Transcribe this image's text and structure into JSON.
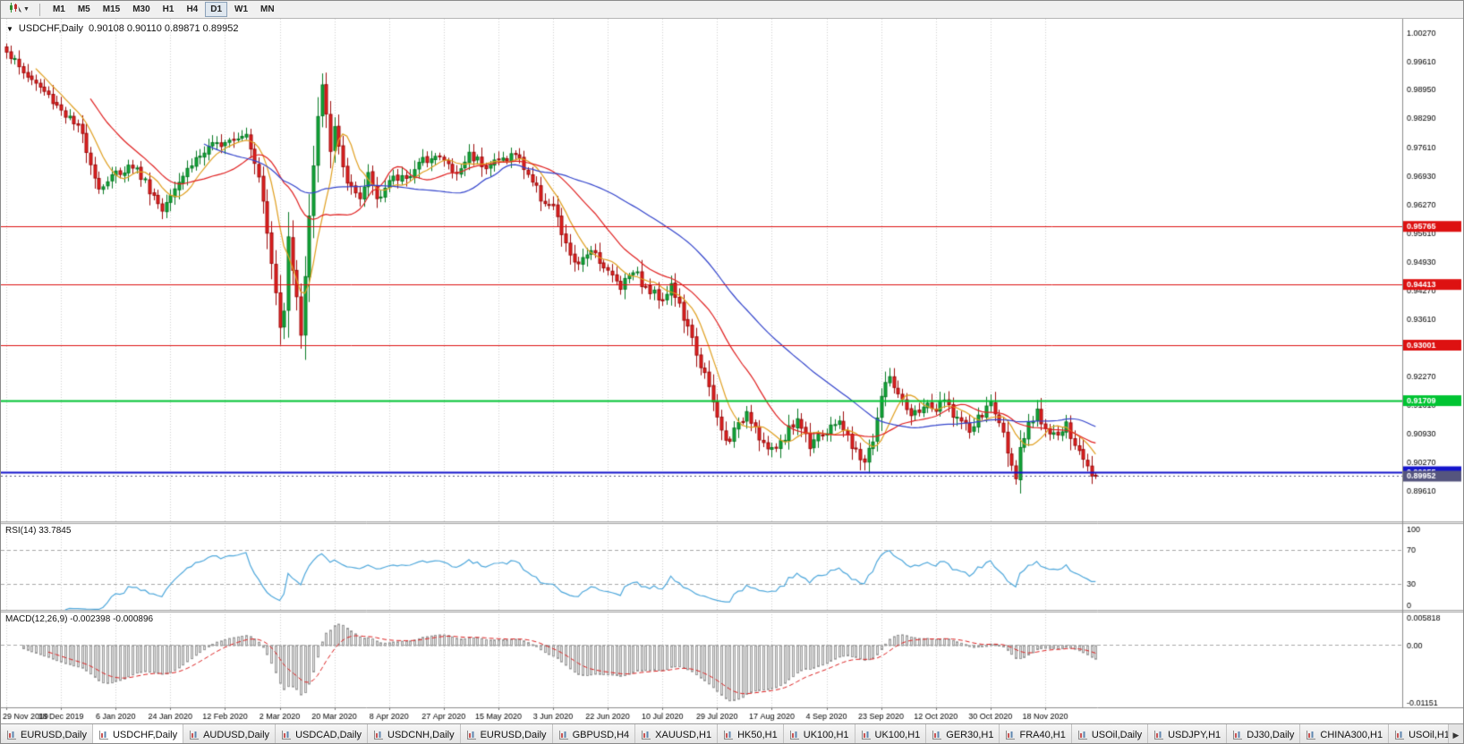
{
  "toolbar": {
    "tool_icon": "candlestick-cursor-tool-icon",
    "dropdown_icon": "chevron-down-icon",
    "timeframes": [
      "M1",
      "M5",
      "M15",
      "M30",
      "H1",
      "H4",
      "D1",
      "W1",
      "MN"
    ],
    "active_timeframe": "D1"
  },
  "main_chart": {
    "collapse_icon": "triangle-down-icon",
    "symbol_label": "USDCHF,Daily",
    "ohlc": "0.90108 0.90110 0.89871 0.89952",
    "price_axis_labels": [
      "1.00270",
      "0.99610",
      "0.98950",
      "0.98290",
      "0.97610",
      "0.96930",
      "0.96270",
      "0.95610",
      "0.94930",
      "0.94270",
      "0.93610",
      "0.92930",
      "0.92270",
      "0.91610",
      "0.90930",
      "0.90270",
      "0.89610"
    ],
    "levels": [
      {
        "label": "0.95765",
        "value": 0.95765,
        "color": "#dd1111",
        "width": 1
      },
      {
        "label": "0.94413",
        "value": 0.94413,
        "color": "#dd1111",
        "width": 1
      },
      {
        "label": "0.93001",
        "value": 0.93001,
        "color": "#dd1111",
        "width": 1
      },
      {
        "label": "0.91709",
        "value": 0.91709,
        "color": "#00c432",
        "width": 2
      },
      {
        "label": "0.90055",
        "value": 0.90055,
        "color": "#1414cc",
        "width": 2
      }
    ],
    "current_price": {
      "label": "0.89952",
      "value": 0.89952,
      "color": "#55557e"
    }
  },
  "rsi_panel": {
    "label": "RSI(14) 33.7845",
    "axis_labels": [
      "100",
      "70",
      "30",
      "0"
    ],
    "upper_level": 70,
    "lower_level": 30
  },
  "macd_panel": {
    "label": "MACD(12,26,9) -0.002398 -0.000896",
    "axis_top": "0.005818",
    "axis_zero": "0.00",
    "axis_bottom": "-0.01151"
  },
  "date_axis": [
    "29 Nov 2019",
    "18 Dec 2019",
    "6 Jan 2020",
    "24 Jan 2020",
    "12 Feb 2020",
    "2 Mar 2020",
    "20 Mar 2020",
    "8 Apr 2020",
    "27 Apr 2020",
    "15 May 2020",
    "3 Jun 2020",
    "22 Jun 2020",
    "10 Jul 2020",
    "29 Jul 2020",
    "17 Aug 2020",
    "4 Sep 2020",
    "23 Sep 2020",
    "12 Oct 2020",
    "30 Oct 2020",
    "18 Nov 2020"
  ],
  "tab_bar": {
    "scroll_right_icon": "chevron-right-icon",
    "tabs": [
      {
        "label": "EURUSD,Daily",
        "active": false
      },
      {
        "label": "USDCHF,Daily",
        "active": true
      },
      {
        "label": "AUDUSD,Daily",
        "active": false
      },
      {
        "label": "USDCAD,Daily",
        "active": false
      },
      {
        "label": "USDCNH,Daily",
        "active": false
      },
      {
        "label": "EURUSD,Daily",
        "active": false
      },
      {
        "label": "GBPUSD,H4",
        "active": false
      },
      {
        "label": "XAUUSD,H1",
        "active": false
      },
      {
        "label": "HK50,H1",
        "active": false
      },
      {
        "label": "UK100,H1",
        "active": false
      },
      {
        "label": "UK100,H1",
        "active": false
      },
      {
        "label": "GER30,H1",
        "active": false
      },
      {
        "label": "FRA40,H1",
        "active": false
      },
      {
        "label": "USOil,Daily",
        "active": false
      },
      {
        "label": "USDJPY,H1",
        "active": false
      },
      {
        "label": "DJ30,Daily",
        "active": false
      },
      {
        "label": "CHINA300,H1",
        "active": false
      },
      {
        "label": "USOil,H1",
        "active": false
      }
    ]
  },
  "colors": {
    "candle_up_fill": "#12a839",
    "candle_up_border": "#077a24",
    "candle_down_fill": "#e32222",
    "candle_down_border": "#9e0b0b",
    "ma_fast": "#e09f1f",
    "ma_mid": "#e02020",
    "ma_slow": "#3344cc",
    "rsi_line": "#4fa8dc",
    "macd_bar_fill": "#e6e6e6",
    "macd_bar_border": "#9b9b9b",
    "macd_signal": "#dd2222",
    "grid": "#cfcfcf",
    "axis_border": "#8c8c8c",
    "level_dash": "#a8a8a8"
  },
  "chart_data": {
    "type": "candlestick",
    "title": "USDCHF Daily with RSI(14) and MACD(12,26,9)",
    "symbol": "USDCHF",
    "timeframe": "Daily",
    "displayed_open": 0.90108,
    "displayed_high": 0.9011,
    "displayed_low": 0.89871,
    "displayed_close": 0.89952,
    "n_bars": 260,
    "bars_per_date_label": 13,
    "price_axis_range": [
      0.889,
      1.006
    ],
    "last_close": 0.89952,
    "horizontal_lines": [
      0.95765,
      0.94413,
      0.93001,
      0.91709,
      0.90055
    ],
    "moving_averages": [
      {
        "period": 8,
        "color": "#e09f1f"
      },
      {
        "period": 21,
        "color": "#e02020"
      },
      {
        "period": 48,
        "color": "#3344cc"
      }
    ],
    "rsi": {
      "period": 14,
      "last": 33.7845,
      "range": [
        0,
        100
      ],
      "levels": [
        30,
        70
      ]
    },
    "macd": {
      "fast": 12,
      "slow": 26,
      "signal": 9,
      "last_main": -0.002398,
      "last_signal": -0.000896,
      "axis_range": [
        -0.01151,
        0.005818
      ]
    },
    "keypoints": [
      [
        0,
        0.999
      ],
      [
        3,
        0.9945
      ],
      [
        8,
        0.99
      ],
      [
        13,
        0.985
      ],
      [
        18,
        0.979
      ],
      [
        22,
        0.9665
      ],
      [
        26,
        0.97
      ],
      [
        30,
        0.972
      ],
      [
        33,
        0.968
      ],
      [
        37,
        0.9615
      ],
      [
        39,
        0.966
      ],
      [
        45,
        0.9735
      ],
      [
        52,
        0.978
      ],
      [
        57,
        0.9795
      ],
      [
        60,
        0.97
      ],
      [
        62,
        0.956
      ],
      [
        64,
        0.942
      ],
      [
        65,
        0.934
      ],
      [
        66,
        0.939
      ],
      [
        67,
        0.956
      ],
      [
        68,
        0.948
      ],
      [
        70,
        0.933
      ],
      [
        72,
        0.96
      ],
      [
        74,
        0.983
      ],
      [
        75,
        0.99
      ],
      [
        77,
        0.976
      ],
      [
        78,
        0.98
      ],
      [
        81,
        0.968
      ],
      [
        84,
        0.963
      ],
      [
        86,
        0.97
      ],
      [
        88,
        0.9645
      ],
      [
        91,
        0.968
      ],
      [
        96,
        0.97
      ],
      [
        101,
        0.9745
      ],
      [
        104,
        0.973
      ],
      [
        107,
        0.9695
      ],
      [
        110,
        0.9745
      ],
      [
        114,
        0.972
      ],
      [
        117,
        0.973
      ],
      [
        121,
        0.9745
      ],
      [
        124,
        0.97
      ],
      [
        127,
        0.9645
      ],
      [
        130,
        0.962
      ],
      [
        133,
        0.953
      ],
      [
        136,
        0.948
      ],
      [
        139,
        0.953
      ],
      [
        143,
        0.947
      ],
      [
        146,
        0.944
      ],
      [
        149,
        0.948
      ],
      [
        152,
        0.943
      ],
      [
        156,
        0.941
      ],
      [
        158,
        0.944
      ],
      [
        160,
        0.939
      ],
      [
        163,
        0.931
      ],
      [
        166,
        0.923
      ],
      [
        169,
        0.913
      ],
      [
        171,
        0.9075
      ],
      [
        174,
        0.911
      ],
      [
        176,
        0.915
      ],
      [
        180,
        0.907
      ],
      [
        182,
        0.905
      ],
      [
        185,
        0.909
      ],
      [
        188,
        0.913
      ],
      [
        191,
        0.907
      ],
      [
        193,
        0.91
      ],
      [
        195,
        0.909
      ],
      [
        198,
        0.913
      ],
      [
        201,
        0.906
      ],
      [
        204,
        0.903
      ],
      [
        206,
        0.908
      ],
      [
        208,
        0.918
      ],
      [
        210,
        0.923
      ],
      [
        212,
        0.918
      ],
      [
        215,
        0.913
      ],
      [
        218,
        0.916
      ],
      [
        221,
        0.915
      ],
      [
        223,
        0.917
      ],
      [
        226,
        0.913
      ],
      [
        229,
        0.91
      ],
      [
        232,
        0.914
      ],
      [
        234,
        0.9165
      ],
      [
        236,
        0.912
      ],
      [
        239,
        0.903
      ],
      [
        240,
        0.898
      ],
      [
        241,
        0.905
      ],
      [
        243,
        0.911
      ],
      [
        245,
        0.914
      ],
      [
        247,
        0.911
      ],
      [
        250,
        0.909
      ],
      [
        252,
        0.911
      ],
      [
        254,
        0.906
      ],
      [
        256,
        0.904
      ],
      [
        258,
        0.9005
      ],
      [
        259,
        0.8995
      ]
    ]
  }
}
